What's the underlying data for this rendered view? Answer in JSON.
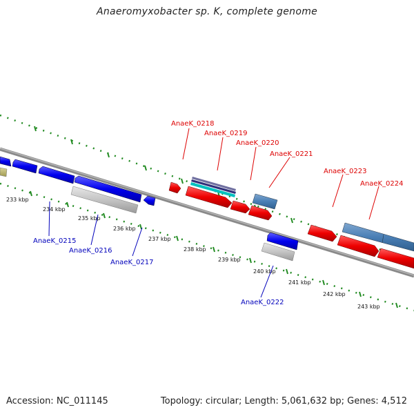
{
  "title": "Anaeromyxobacter sp. K, complete genome",
  "accession": "Accession: NC_011145",
  "summary": "Topology: circular; Length: 5,061,632 bp; Genes: 4,512",
  "colors": {
    "forward_label": "#dd0000",
    "reverse_label": "#0000bb",
    "tick": "#228b22",
    "backbone": "#808080"
  },
  "kbp_labels": [
    "233 kbp",
    "234 kbp",
    "235 kbp",
    "236 kbp",
    "237 kbp",
    "238 kbp",
    "239 kbp",
    "240 kbp",
    "241 kbp",
    "242 kbp",
    "243 kbp"
  ],
  "gene_labels_forward": [
    "AnaeK_0218",
    "AnaeK_0219",
    "AnaeK_0220",
    "AnaeK_0221",
    "AnaeK_0223",
    "AnaeK_0224"
  ],
  "gene_labels_reverse": [
    "AnaeK_0215",
    "AnaeK_0216",
    "AnaeK_0217",
    "AnaeK_0222"
  ]
}
